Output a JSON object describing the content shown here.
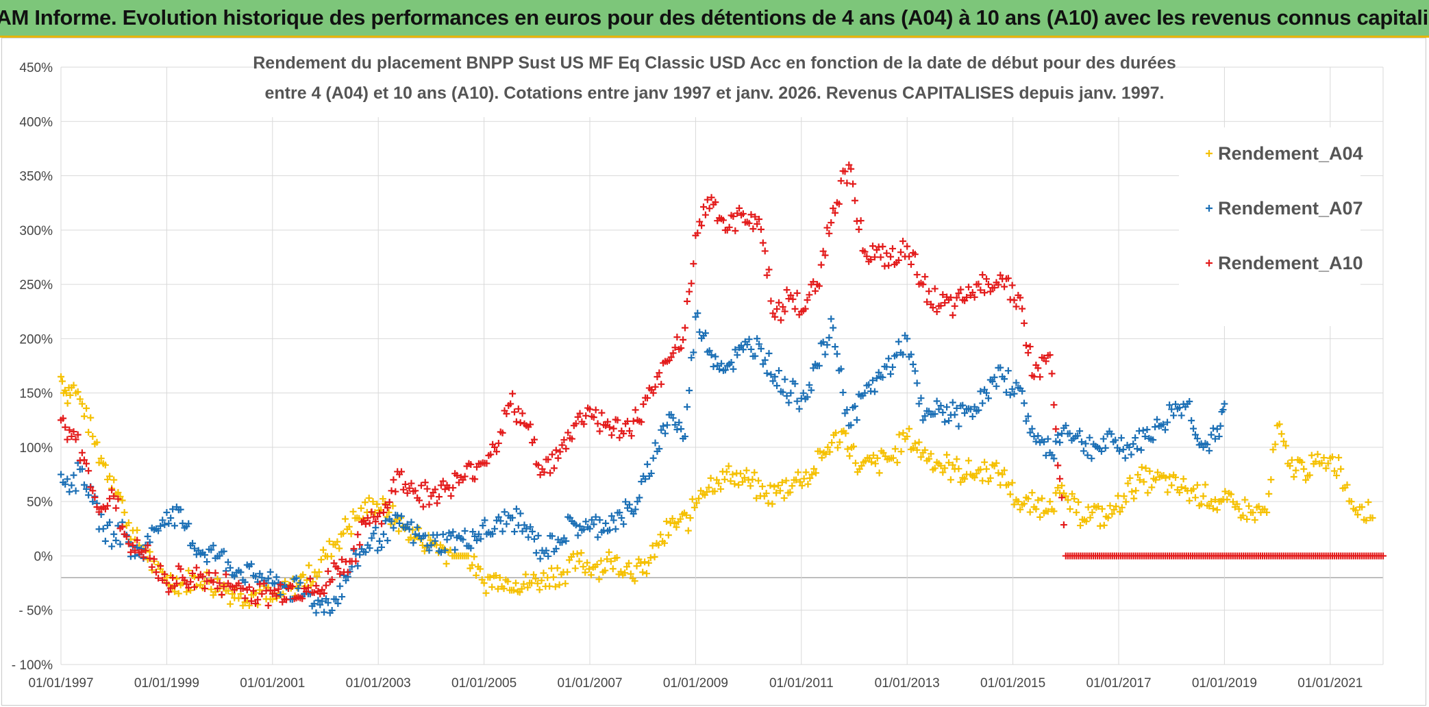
{
  "banner": {
    "text": "ADAM Informe. Evolution historique des performances en euros pour des détentions de 4 ans (A04) à 10 ans (A10) avec les revenus connus capitalisés"
  },
  "chart_data": {
    "type": "scatter",
    "title_lines": [
      "Rendement du placement BNPP Sust US MF Eq Classic USD Acc en fonction de la date de début pour des durées",
      "entre 4 (A04) et 10 ans (A10). Cotations entre janv 1997 et janv. 2026. Revenus CAPITALISES depuis janv. 1997."
    ],
    "xlabel": "",
    "ylabel": "",
    "x_range": [
      1997.0,
      2022.0
    ],
    "ylim": [
      -100,
      450
    ],
    "y_ticks": [
      450,
      400,
      350,
      300,
      250,
      200,
      150,
      100,
      50,
      0,
      -50,
      -100
    ],
    "y_tick_labels": [
      "450%",
      "400%",
      "350%",
      "300%",
      "250%",
      "200%",
      "150%",
      "100%",
      "50%",
      "0%",
      "- 50%",
      "- 100%"
    ],
    "x_tick_labels": [
      "01/01/1997",
      "01/01/1999",
      "01/01/2001",
      "01/01/2003",
      "01/01/2005",
      "01/01/2007",
      "01/01/2009",
      "01/01/2011",
      "01/01/2013",
      "01/01/2015",
      "01/01/2017",
      "01/01/2019",
      "01/01/2021"
    ],
    "x_ticks": [
      1997,
      1999,
      2001,
      2003,
      2005,
      2007,
      2009,
      2011,
      2013,
      2015,
      2017,
      2019,
      2021
    ],
    "grid": true,
    "legend_position": "top-right",
    "marker": "+",
    "series": [
      {
        "name": "Rendement_A04",
        "color": "#f5c000",
        "x": [
          1997.0,
          1997.1,
          1997.2,
          1997.4,
          1997.6,
          1997.8,
          1998.0,
          1998.2,
          1998.4,
          1998.6,
          1998.8,
          1999.0,
          1999.3,
          1999.6,
          2000.0,
          2000.4,
          2000.8,
          2001.0,
          2001.2,
          2001.5,
          2001.8,
          2002.0,
          2002.3,
          2002.6,
          2002.9,
          2003.2,
          2003.5,
          2003.8,
          2004.1,
          2004.4,
          2004.7,
          2005.0,
          2005.3,
          2005.6,
          2005.9,
          2006.2,
          2006.5,
          2006.8,
          2007.1,
          2007.4,
          2007.7,
          2008.0,
          2008.3,
          2008.6,
          2008.9,
          2009.1,
          2009.4,
          2009.7,
          2010.0,
          2010.3,
          2010.6,
          2010.9,
          2011.2,
          2011.5,
          2011.8,
          2012.1,
          2012.4,
          2012.7,
          2013.0,
          2013.3,
          2013.6,
          2013.9,
          2014.2,
          2014.5,
          2014.8,
          2015.1,
          2015.4,
          2015.7,
          2016.0,
          2016.2,
          2016.5,
          2016.8,
          2017.1,
          2017.4,
          2017.7,
          2018.0,
          2018.3,
          2018.6,
          2018.9,
          2019.2,
          2019.5,
          2019.8,
          2020.0,
          2020.2,
          2020.5,
          2020.8,
          2021.0,
          2021.2,
          2021.4,
          2021.6,
          2021.8
        ],
        "y": [
          165,
          150,
          155,
          140,
          110,
          85,
          70,
          40,
          15,
          5,
          -15,
          -20,
          -25,
          -20,
          -30,
          -35,
          -35,
          -40,
          -35,
          -25,
          -15,
          0,
          20,
          35,
          50,
          40,
          25,
          15,
          10,
          0,
          0,
          -25,
          -20,
          -25,
          -25,
          -20,
          -15,
          -5,
          -10,
          -5,
          -10,
          -15,
          10,
          30,
          35,
          60,
          70,
          75,
          70,
          55,
          60,
          70,
          75,
          100,
          115,
          80,
          85,
          90,
          110,
          95,
          85,
          80,
          75,
          80,
          75,
          50,
          45,
          50,
          55,
          40,
          40,
          35,
          55,
          70,
          70,
          65,
          60,
          55,
          50,
          45,
          40,
          40,
          120,
          85,
          80,
          85,
          90,
          80,
          50,
          45,
          35
        ]
      },
      {
        "name": "Rendement_A07",
        "color": "#1b6fb5",
        "x": [
          1997.0,
          1997.2,
          1997.4,
          1997.6,
          1997.8,
          1998.0,
          1998.2,
          1998.4,
          1998.6,
          1998.8,
          1999.0,
          1999.3,
          1999.6,
          2000.0,
          2000.4,
          2000.8,
          2001.0,
          2001.3,
          2001.6,
          2001.9,
          2002.2,
          2002.5,
          2002.8,
          2003.1,
          2003.4,
          2003.7,
          2004.0,
          2004.3,
          2004.6,
          2004.9,
          2005.2,
          2005.5,
          2005.8,
          2006.1,
          2006.4,
          2006.7,
          2007.0,
          2007.3,
          2007.6,
          2007.9,
          2008.2,
          2008.5,
          2008.8,
          2009.0,
          2009.3,
          2009.6,
          2009.9,
          2010.2,
          2010.5,
          2010.8,
          2011.0,
          2011.3,
          2011.6,
          2011.9,
          2012.2,
          2012.5,
          2012.8,
          2013.0,
          2013.3,
          2013.6,
          2013.9,
          2014.2,
          2014.5,
          2014.8,
          2015.1,
          2015.4,
          2015.7,
          2016.0,
          2016.3,
          2016.6,
          2016.9,
          2017.2,
          2017.5,
          2017.8,
          2018.0,
          2018.3,
          2018.6,
          2018.9,
          2019.0
        ],
        "y": [
          75,
          65,
          80,
          50,
          25,
          20,
          20,
          0,
          10,
          25,
          40,
          30,
          5,
          0,
          -15,
          -20,
          -25,
          -30,
          -35,
          -45,
          -40,
          -10,
          10,
          20,
          30,
          20,
          10,
          15,
          15,
          20,
          25,
          35,
          25,
          5,
          15,
          30,
          25,
          30,
          35,
          50,
          90,
          130,
          110,
          220,
          185,
          175,
          190,
          195,
          165,
          150,
          145,
          175,
          210,
          120,
          150,
          165,
          185,
          200,
          125,
          135,
          130,
          135,
          150,
          165,
          155,
          110,
          95,
          120,
          105,
          100,
          105,
          100,
          110,
          120,
          135,
          140,
          100,
          110,
          140
        ]
      },
      {
        "name": "Rendement_A10",
        "color": "#e31b1b",
        "x": [
          1997.0,
          1997.2,
          1997.4,
          1997.6,
          1997.8,
          1998.0,
          1998.2,
          1998.4,
          1998.6,
          1998.8,
          1999.0,
          1999.3,
          1999.6,
          2000.0,
          2000.4,
          2000.8,
          2001.0,
          2001.3,
          2001.6,
          2001.9,
          2002.2,
          2002.5,
          2002.8,
          2003.1,
          2003.4,
          2003.7,
          2004.0,
          2004.3,
          2004.6,
          2004.9,
          2005.2,
          2005.5,
          2005.8,
          2006.1,
          2006.4,
          2006.7,
          2007.0,
          2007.3,
          2007.6,
          2007.9,
          2008.2,
          2008.5,
          2008.8,
          2009.0,
          2009.3,
          2009.6,
          2009.9,
          2010.2,
          2010.5,
          2010.8,
          2011.0,
          2011.3,
          2011.6,
          2011.9,
          2012.2,
          2012.5,
          2012.8,
          2013.0,
          2013.3,
          2013.6,
          2013.9,
          2014.2,
          2014.5,
          2014.8,
          2015.1,
          2015.4,
          2015.7,
          2016.0,
          2016.4,
          2016.8,
          2017.2,
          2017.6,
          2018.0,
          2018.4,
          2018.8,
          2019.2,
          2019.6,
          2020.0,
          2020.4,
          2020.8,
          2021.2,
          2021.6,
          2022.0
        ],
        "y": [
          125,
          110,
          95,
          60,
          45,
          55,
          20,
          5,
          5,
          -15,
          -25,
          -20,
          -20,
          -25,
          -30,
          -35,
          -35,
          -30,
          -30,
          -35,
          -10,
          -5,
          35,
          40,
          75,
          60,
          55,
          65,
          70,
          85,
          100,
          140,
          120,
          80,
          90,
          120,
          135,
          120,
          115,
          125,
          150,
          180,
          210,
          295,
          330,
          300,
          315,
          310,
          220,
          240,
          225,
          250,
          320,
          360,
          280,
          275,
          270,
          285,
          250,
          230,
          230,
          240,
          255,
          255,
          240,
          165,
          185,
          0,
          0,
          0,
          0,
          0,
          0,
          0,
          0,
          0,
          0,
          0,
          0,
          0,
          0,
          0,
          0
        ]
      }
    ]
  }
}
